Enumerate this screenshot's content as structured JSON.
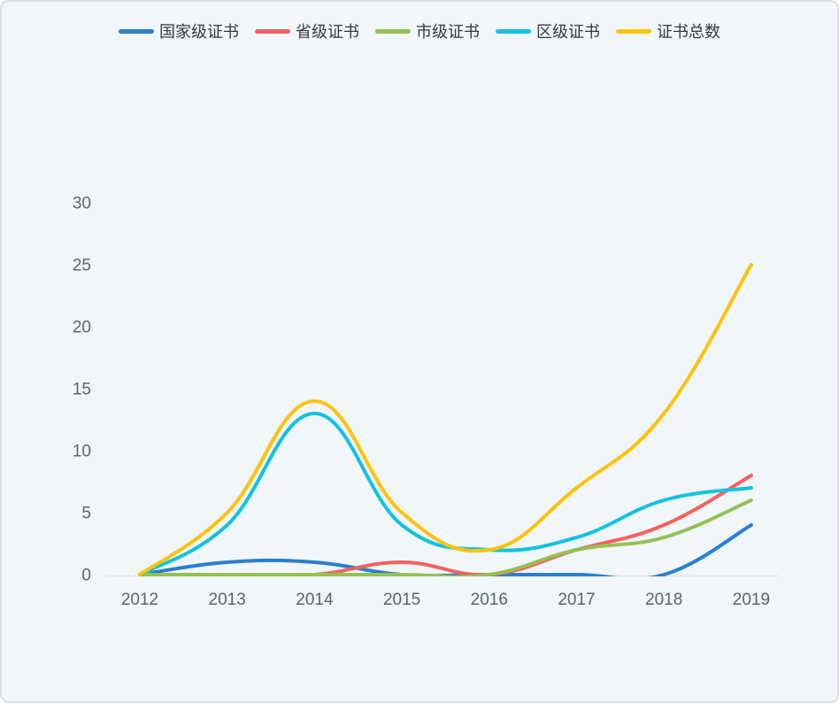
{
  "page": {
    "background_color": "#f0f6fa",
    "border_color": "#d9dee4",
    "axis_line_color": "#e2e8ee",
    "tick_label_color": "#5d646c",
    "legend_text_color": "#383838"
  },
  "chart_data": {
    "type": "line",
    "smooth": true,
    "grid": false,
    "legend_position": "top-center",
    "categories": [
      "2012",
      "2013",
      "2014",
      "2015",
      "2016",
      "2017",
      "2018",
      "2019"
    ],
    "series": [
      {
        "name": "国家级证书",
        "color": "#2a7fd0",
        "values": [
          0,
          1,
          1,
          0,
          0,
          0,
          0,
          4
        ]
      },
      {
        "name": "省级证书",
        "color": "#f4615e",
        "values": [
          0,
          0,
          0,
          1,
          0,
          2,
          4,
          8
        ]
      },
      {
        "name": "市级证书",
        "color": "#94c153",
        "values": [
          0,
          0,
          0,
          0,
          0,
          2,
          3,
          6
        ]
      },
      {
        "name": "区级证书",
        "color": "#12c2e0",
        "values": [
          0,
          4,
          13,
          4,
          2,
          3,
          6,
          7
        ]
      },
      {
        "name": "证书总数",
        "color": "#fdc30c",
        "values": [
          0,
          5,
          14,
          5,
          2,
          7,
          13,
          25
        ]
      }
    ],
    "yticks": [
      0,
      5,
      10,
      15,
      20,
      25,
      30
    ],
    "ylim": [
      0,
      30
    ],
    "xlabel": "",
    "ylabel": "",
    "title": ""
  }
}
